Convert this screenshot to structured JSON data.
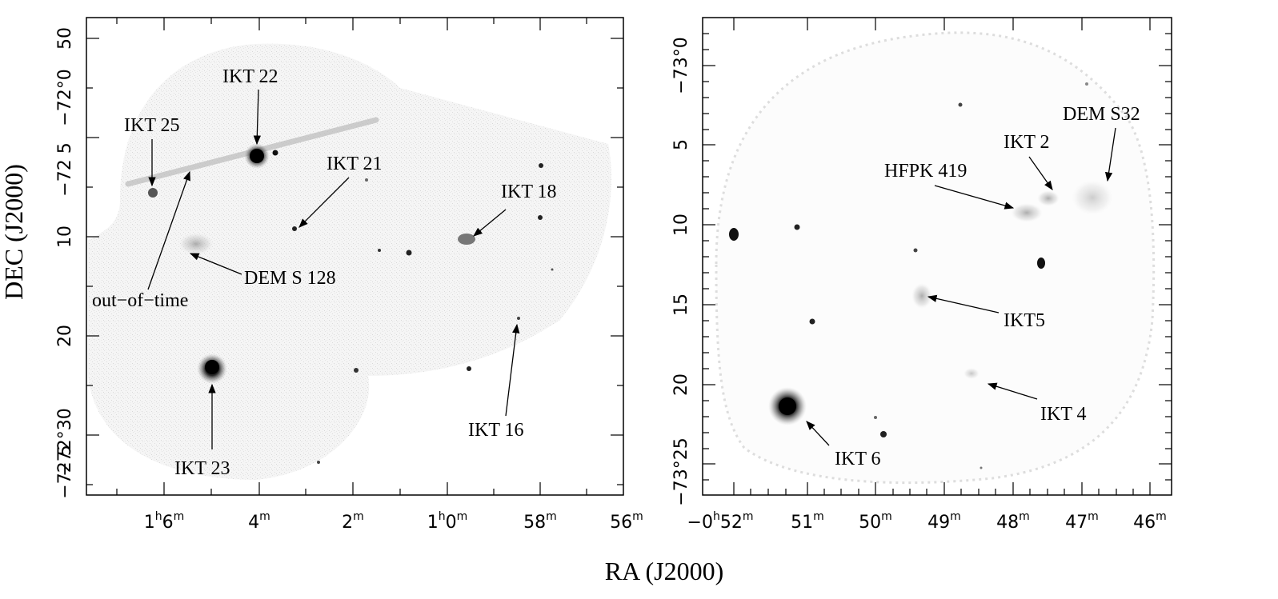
{
  "figure": {
    "xlabel": "RA (J2000)",
    "ylabel": "DEC (J2000)"
  },
  "left_panel": {
    "y_ticks": [
      {
        "main": "50",
        "sup": "′"
      },
      {
        "main": "−72°0",
        "sup": "′"
      },
      {
        "main": "−72 5",
        "sup": ""
      },
      {
        "main": "10",
        "sup": "′"
      },
      {
        "main": "20",
        "sup": "′"
      },
      {
        "main": "−72°30",
        "sup": "′"
      },
      {
        "main": "−72 5",
        "sup": ""
      }
    ],
    "x_ticks": [
      {
        "main": "1",
        "h": "h",
        "num": "6",
        "unit": "m"
      },
      {
        "main": "",
        "h": "",
        "num": "4",
        "unit": "m"
      },
      {
        "main": "",
        "h": "",
        "num": "2",
        "unit": "m"
      },
      {
        "main": "1",
        "h": "h",
        "num": "0",
        "unit": "m"
      },
      {
        "main": "",
        "h": "",
        "num": "58",
        "unit": "m"
      },
      {
        "main": "",
        "h": "",
        "num": "56",
        "unit": "m"
      }
    ],
    "labels": {
      "ikt22": "IKT 22",
      "ikt25": "IKT 25",
      "ikt21": "IKT 21",
      "ikt18": "IKT 18",
      "dem128": "DEM S 128",
      "outoftime": "out−of−time",
      "ikt23": "IKT 23",
      "ikt16": "IKT 16"
    }
  },
  "right_panel": {
    "y_ticks": [
      {
        "main": "−73°0",
        "sup": "′"
      },
      {
        "main": "5",
        "sup": "′"
      },
      {
        "main": "10",
        "sup": "′"
      },
      {
        "main": "15",
        "sup": "′"
      },
      {
        "main": "20",
        "sup": "′"
      },
      {
        "main": "−73°25",
        "sup": "′"
      }
    ],
    "x_ticks": [
      {
        "pre": "−0",
        "h": "h",
        "num": "52",
        "unit": "m"
      },
      {
        "pre": "",
        "h": "",
        "num": "51",
        "unit": "m"
      },
      {
        "pre": "",
        "h": "",
        "num": "50",
        "unit": "m"
      },
      {
        "pre": "",
        "h": "",
        "num": "49",
        "unit": "m"
      },
      {
        "pre": "",
        "h": "",
        "num": "48",
        "unit": "m"
      },
      {
        "pre": "",
        "h": "",
        "num": "47",
        "unit": "m"
      },
      {
        "pre": "",
        "h": "",
        "num": "46",
        "unit": "m"
      }
    ],
    "labels": {
      "dems32": "DEM S32",
      "ikt2": "IKT 2",
      "hfpk419": "HFPK 419",
      "ikt5": "IKT5",
      "ikt4": "IKT 4",
      "ikt6": "IKT 6"
    }
  }
}
